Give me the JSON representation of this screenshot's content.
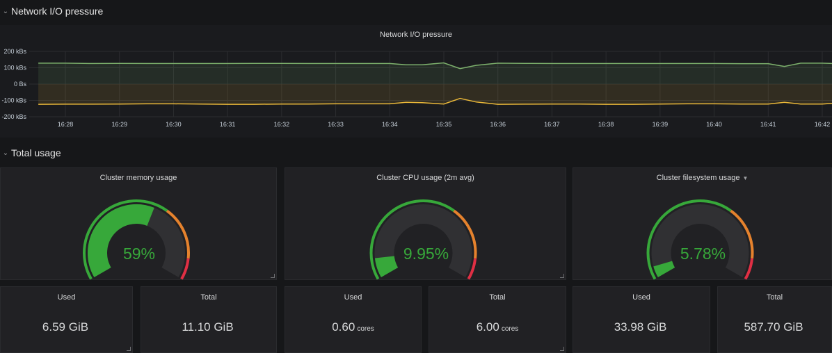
{
  "rows": {
    "network": {
      "title": "Network I/O pressure",
      "icon": "chevron-down-icon"
    },
    "total": {
      "title": "Total usage",
      "icon": "chevron-down-icon"
    }
  },
  "network_panel": {
    "title": "Network I/O pressure",
    "y_ticks": [
      "200 kBs",
      "100 kBs",
      "0 Bs",
      "-100 kBs",
      "-200 kBs"
    ],
    "x_ticks": [
      "16:28",
      "16:29",
      "16:30",
      "16:31",
      "16:32",
      "16:33",
      "16:34",
      "16:35",
      "16:36",
      "16:37",
      "16:38",
      "16:39",
      "16:40",
      "16:41",
      "16:42"
    ]
  },
  "chart_data": {
    "type": "area",
    "title": "Network I/O pressure",
    "ylim": [
      -200,
      200
    ],
    "y_unit": "kBs",
    "x": [
      "16:27.5",
      "16:28",
      "16:28.5",
      "16:29",
      "16:29.5",
      "16:30",
      "16:30.5",
      "16:31",
      "16:31.5",
      "16:32",
      "16:32.5",
      "16:33",
      "16:33.5",
      "16:34",
      "16:34.3",
      "16:34.6",
      "16:35",
      "16:35.3",
      "16:35.6",
      "16:36",
      "16:36.5",
      "16:37",
      "16:37.5",
      "16:38",
      "16:38.5",
      "16:39",
      "16:39.5",
      "16:40",
      "16:40.5",
      "16:41",
      "16:41.3",
      "16:41.6",
      "16:42",
      "16:42.3"
    ],
    "series": [
      {
        "color": "#7eb26d",
        "values": [
          128,
          128,
          126,
          127,
          126,
          126,
          126,
          126,
          127,
          127,
          126,
          126,
          126,
          126,
          118,
          118,
          130,
          95,
          115,
          128,
          127,
          126,
          126,
          126,
          126,
          126,
          126,
          126,
          125,
          125,
          108,
          128,
          128,
          126
        ]
      },
      {
        "color": "#eab839",
        "values": [
          -124,
          -123,
          -123,
          -122,
          -121,
          -121,
          -122,
          -124,
          -124,
          -122,
          -122,
          -121,
          -121,
          -121,
          -112,
          -114,
          -122,
          -88,
          -110,
          -124,
          -123,
          -122,
          -122,
          -124,
          -124,
          -122,
          -121,
          -121,
          -122,
          -122,
          -112,
          -122,
          -122,
          -118
        ]
      }
    ],
    "grid": true,
    "legend": "none"
  },
  "gauges": [
    {
      "title": "Cluster memory usage",
      "value_text": "59%",
      "percent": 59,
      "has_dropdown": false
    },
    {
      "title": "Cluster CPU usage (2m avg)",
      "value_text": "9.95%",
      "percent": 9.95,
      "has_dropdown": false
    },
    {
      "title": "Cluster filesystem usage",
      "value_text": "5.78%",
      "percent": 5.78,
      "has_dropdown": true
    }
  ],
  "gauge_colors": {
    "ok": "#37a83a",
    "warn": "#e5822d",
    "crit": "#e02f44",
    "track": "#303033"
  },
  "gauge_thresholds": [
    0,
    65,
    90,
    100
  ],
  "stats": [
    {
      "title": "Used",
      "value": "6.59 GiB",
      "unit": ""
    },
    {
      "title": "Total",
      "value": "11.10 GiB",
      "unit": ""
    },
    {
      "title": "Used",
      "value": "0.60",
      "unit": "cores"
    },
    {
      "title": "Total",
      "value": "6.00",
      "unit": "cores"
    },
    {
      "title": "Used",
      "value": "33.98 GiB",
      "unit": ""
    },
    {
      "title": "Total",
      "value": "587.70 GiB",
      "unit": ""
    }
  ]
}
